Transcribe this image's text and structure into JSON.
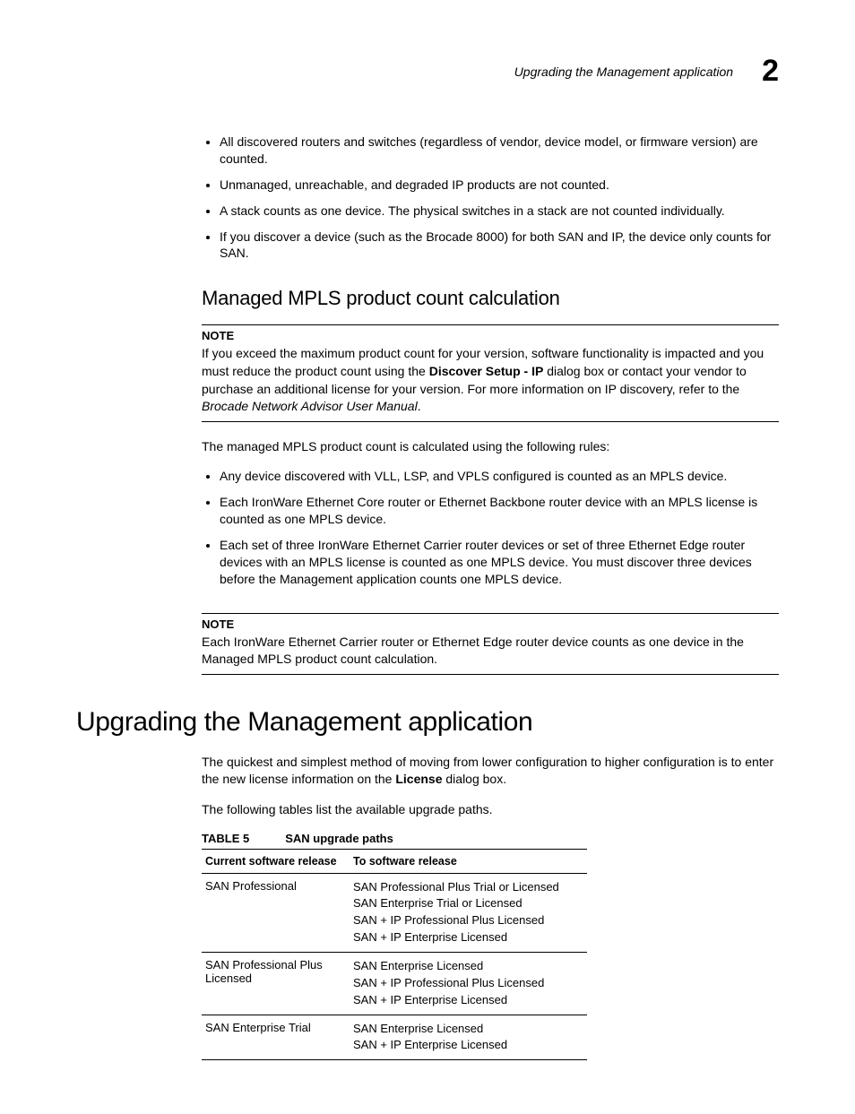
{
  "running_head": {
    "title": "Upgrading the Management application",
    "chapter_number": "2"
  },
  "intro_bullets": [
    "All discovered routers and switches (regardless of vendor, device model, or firmware version) are counted.",
    "Unmanaged, unreachable, and degraded IP products are not counted.",
    "A stack counts as one device. The physical switches in a stack are not counted individually.",
    "If you discover a device (such as the Brocade 8000) for both SAN and IP, the device only counts for SAN."
  ],
  "mpls": {
    "heading": "Managed MPLS product count calculation",
    "note1": {
      "label": "NOTE",
      "pre_bold": "If you exceed the maximum product count for your version, software functionality is impacted and you must reduce the product count using the ",
      "bold": "Discover Setup - IP",
      "post_bold": " dialog box or contact your vendor to purchase an additional license for your version. For more information on IP discovery, refer to the ",
      "ital": "Brocade Network Advisor User Manual",
      "after_ital": "."
    },
    "intro": "The managed MPLS product count is calculated using the following rules:",
    "bullets": [
      "Any device discovered with VLL, LSP, and VPLS configured is counted as an MPLS device.",
      "Each IronWare Ethernet Core router or Ethernet Backbone router device with an MPLS license is counted as one MPLS device.",
      "Each set of three IronWare Ethernet Carrier router devices or set of three Ethernet Edge router devices with an MPLS license is counted as one MPLS device. You must discover three devices before the Management application counts one MPLS device."
    ],
    "note2": {
      "label": "NOTE",
      "text": "Each IronWare Ethernet Carrier router or Ethernet Edge router device counts as one device in the Managed MPLS product count calculation."
    }
  },
  "upgrade": {
    "heading": "Upgrading the Management application",
    "p1_pre": "The quickest and simplest method of moving from lower configuration to higher configuration is to enter the new license information on the ",
    "p1_bold": "License",
    "p1_post": " dialog box.",
    "p2": "The following tables list the available upgrade paths.",
    "table": {
      "label": "TABLE 5",
      "title": "SAN upgrade paths",
      "columns": [
        "Current software release",
        "To software release"
      ],
      "rows": [
        {
          "from": "SAN Professional",
          "to": [
            "SAN Professional Plus Trial or Licensed",
            "SAN Enterprise Trial or Licensed",
            "SAN + IP Professional Plus Licensed",
            "SAN + IP Enterprise Licensed"
          ]
        },
        {
          "from": "SAN Professional Plus Licensed",
          "to": [
            "SAN Enterprise Licensed",
            "SAN + IP Professional Plus Licensed",
            "SAN + IP Enterprise Licensed"
          ]
        },
        {
          "from": "SAN Enterprise Trial",
          "to": [
            "SAN Enterprise Licensed",
            "SAN + IP Enterprise Licensed"
          ]
        }
      ]
    }
  }
}
